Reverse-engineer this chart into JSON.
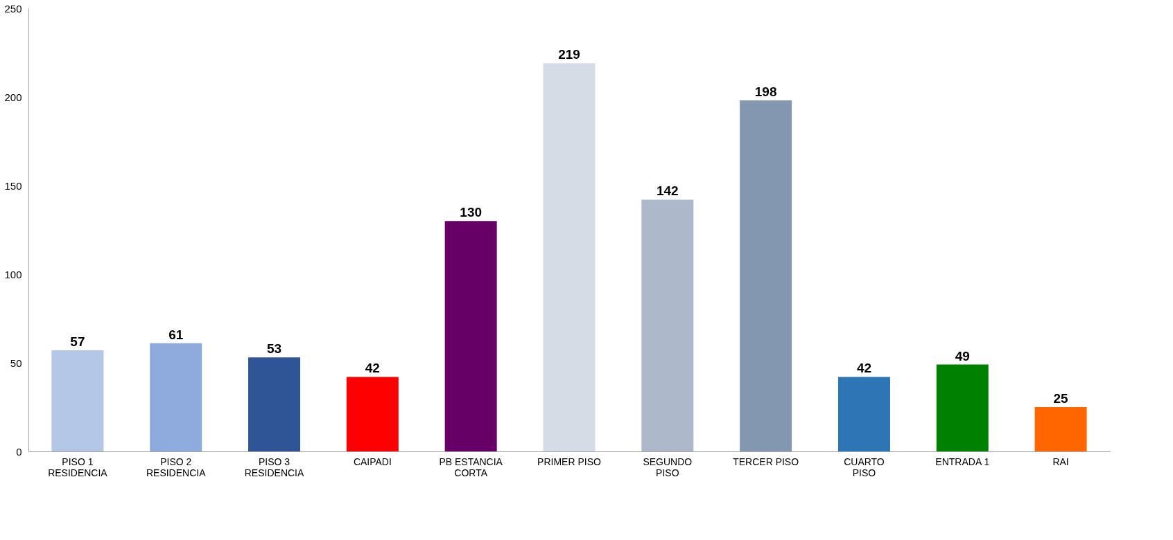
{
  "chart_data": {
    "type": "bar",
    "categories": [
      "PISO 1\nRESIDENCIA",
      "PISO 2\nRESIDENCIA",
      "PISO 3\nRESIDENCIA",
      "CAIPADI",
      "PB ESTANCIA\nCORTA",
      "PRIMER PISO",
      "SEGUNDO\nPISO",
      "TERCER PISO",
      "CUARTO\nPISO",
      "ENTRADA 1",
      "RAI"
    ],
    "values": [
      57,
      61,
      53,
      42,
      130,
      219,
      142,
      198,
      42,
      49,
      25
    ],
    "colors": [
      "#b4c7e7",
      "#8faadc",
      "#2f5597",
      "#ff0000",
      "#660066",
      "#d6dce5",
      "#adb9ca",
      "#8497b0",
      "#2e75b6",
      "#008000",
      "#ff6600"
    ],
    "ylim": [
      0,
      250
    ],
    "yticks": [
      0,
      50,
      100,
      150,
      200,
      250
    ],
    "grid": false,
    "data_labels": true
  }
}
